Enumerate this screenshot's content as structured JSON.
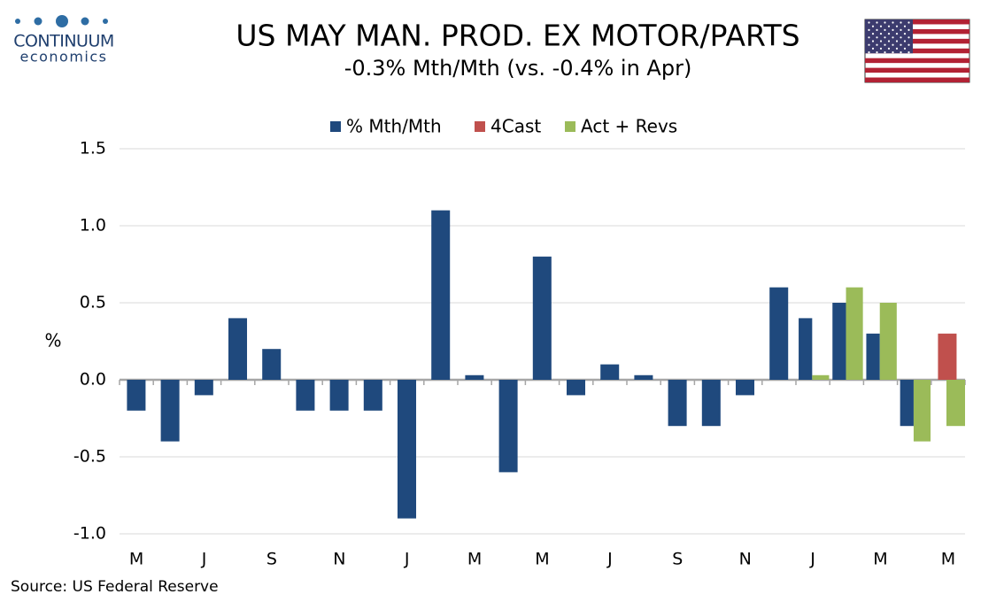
{
  "logo": {
    "name": "CONTINUUM",
    "tagline": "economics"
  },
  "chart_data": {
    "type": "bar",
    "title": "US MAY MAN. PROD. EX MOTOR/PARTS",
    "subtitle": "-0.3% Mth/Mth (vs. -0.4% in Apr)",
    "y_label": "%",
    "source": "Source: US Federal Reserve",
    "categories": [
      "M",
      null,
      "J",
      null,
      "S",
      null,
      "N",
      null,
      "J",
      null,
      "M",
      null,
      "M",
      null,
      "J",
      null,
      "S",
      null,
      "N",
      null,
      "J",
      null,
      "M",
      null,
      "M"
    ],
    "series": [
      {
        "name": "% Mth/Mth",
        "color": "#1f497d",
        "values": [
          -0.2,
          -0.4,
          -0.1,
          0.4,
          0.2,
          -0.2,
          -0.2,
          -0.2,
          -0.9,
          1.1,
          0.03,
          -0.6,
          0.8,
          -0.1,
          0.1,
          0.03,
          -0.3,
          -0.3,
          -0.1,
          0.6,
          0.4,
          0.5,
          0.3,
          -0.3,
          null
        ]
      },
      {
        "name": "4Cast",
        "color": "#c0504d",
        "values": [
          null,
          null,
          null,
          null,
          null,
          null,
          null,
          null,
          null,
          null,
          null,
          null,
          null,
          null,
          null,
          null,
          null,
          null,
          null,
          null,
          null,
          null,
          null,
          null,
          0.3
        ]
      },
      {
        "name": "Act + Revs",
        "color": "#9bbb59",
        "values": [
          null,
          null,
          null,
          null,
          null,
          null,
          null,
          null,
          null,
          null,
          null,
          null,
          null,
          null,
          null,
          null,
          null,
          null,
          null,
          null,
          0.03,
          0.6,
          0.5,
          -0.4,
          -0.3
        ]
      }
    ],
    "ylim": [
      -1.0,
      1.5
    ],
    "yticks": [
      {
        "value": -1.0,
        "label": "-1.0"
      },
      -0.5,
      {
        "value": 0.0,
        "label": "0.0"
      },
      0.5,
      {
        "value": 1.0,
        "label": "1.0"
      },
      1.5
    ],
    "grid": true,
    "legend": "top"
  }
}
